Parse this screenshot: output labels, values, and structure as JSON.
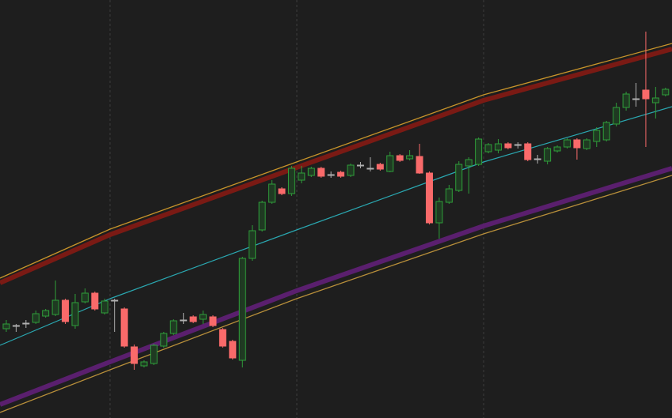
{
  "chart_data": {
    "type": "candlestick",
    "background": "#1e1e1e",
    "up_color": "#2f9e3a",
    "down_color": "#f96a6a",
    "flat_color": "#b0b0b0",
    "categories": [
      null,
      null,
      null,
      null,
      null,
      null,
      null,
      null,
      null,
      null,
      null,
      null,
      null,
      null,
      null,
      null,
      null,
      null,
      null,
      null,
      null,
      null,
      null,
      null,
      null,
      null,
      null,
      null,
      null,
      null,
      null,
      null,
      null,
      null,
      null,
      null,
      null,
      null,
      null,
      null,
      null,
      null,
      null,
      null,
      null,
      null,
      null,
      null,
      null,
      null,
      null,
      null,
      null,
      null,
      null,
      null,
      null,
      null,
      null,
      null,
      null,
      null,
      null,
      null,
      null,
      null,
      null,
      null
    ],
    "open": [
      113,
      117,
      120,
      121,
      129,
      131,
      149,
      117,
      147,
      158,
      133,
      149,
      138,
      90,
      66,
      69,
      91,
      107,
      124,
      128,
      125,
      128,
      112,
      97,
      73,
      202,
      238,
      273,
      290,
      284,
      301,
      307,
      316,
      308,
      311,
      307,
      320,
      316,
      321,
      312,
      332,
      328,
      331,
      310,
      247,
      273,
      288,
      319,
      321,
      337,
      339,
      347,
      346,
      347,
      328,
      325,
      338,
      343,
      352,
      341,
      350,
      352,
      372,
      393,
      404,
      415,
      399,
      409
    ],
    "high": [
      124,
      119,
      124,
      136,
      138,
      174,
      151,
      157,
      164,
      160,
      151,
      151,
      140,
      93,
      73,
      94,
      109,
      125,
      133,
      130,
      136,
      130,
      114,
      99,
      204,
      244,
      275,
      301,
      292,
      319,
      319,
      318,
      318,
      312,
      313,
      322,
      324,
      330,
      323,
      337,
      334,
      339,
      347,
      312,
      279,
      295,
      325,
      330,
      355,
      348,
      353,
      349,
      349,
      349,
      333,
      343,
      345,
      354,
      354,
      354,
      368,
      376,
      399,
      413,
      424,
      489,
      419,
      418
    ],
    "low": [
      109,
      109,
      114,
      119,
      127,
      129,
      119,
      113,
      145,
      136,
      131,
      109,
      89,
      61,
      64,
      67,
      89,
      105,
      119,
      120,
      119,
      115,
      89,
      74,
      64,
      199,
      236,
      271,
      282,
      281,
      297,
      305,
      304,
      304,
      304,
      305,
      316,
      312,
      313,
      311,
      324,
      326,
      309,
      245,
      227,
      271,
      286,
      284,
      319,
      335,
      335,
      340,
      341,
      325,
      322,
      321,
      336,
      341,
      327,
      339,
      343,
      350,
      369,
      389,
      394,
      343,
      379,
      407
    ],
    "close": [
      119,
      117,
      120,
      132,
      136,
      149,
      122,
      146,
      158,
      138,
      148,
      149,
      91,
      69,
      71,
      92,
      107,
      123,
      124,
      122,
      131,
      117,
      91,
      76,
      202,
      237,
      273,
      296,
      284,
      316,
      310,
      316,
      306,
      308,
      306,
      320,
      320,
      316,
      315,
      332,
      326,
      332,
      310,
      247,
      274,
      290,
      321,
      327,
      353,
      346,
      347,
      342,
      346,
      327,
      328,
      341,
      343,
      352,
      342,
      352,
      364,
      374,
      393,
      410,
      404,
      404,
      405,
      416
    ],
    "xlim": [
      -0.64,
      67.66
    ],
    "ylim": [
      0,
      529
    ],
    "lines": [
      {
        "color": "#7a1a14",
        "width": 6,
        "x": [
          -0.64,
          10.54,
          29.5,
          48.5,
          67.66
        ],
        "values": [
          171,
          232,
          317,
          402,
          467
        ]
      },
      {
        "color": "#c8942a",
        "width": 1.3,
        "x": [
          -0.64,
          10.54,
          29.5,
          48.5,
          67.66
        ],
        "values": [
          177,
          239,
          324,
          409,
          474
        ]
      },
      {
        "color": "#2aa7b0",
        "width": 1.2,
        "x": [
          -0.64,
          10.54,
          29.5,
          48.5,
          67.66
        ],
        "values": [
          92,
          151,
          238,
          324,
          394
        ]
      },
      {
        "color": "#5a1f6e",
        "width": 6,
        "x": [
          -0.64,
          10.54,
          29.5,
          48.5,
          67.66
        ],
        "values": [
          17,
          71,
          161,
          243,
          316
        ]
      },
      {
        "color": "#b88f3a",
        "width": 1.3,
        "x": [
          -0.64,
          10.54,
          29.5,
          48.5,
          67.66
        ],
        "values": [
          7,
          61,
          151,
          233,
          307
        ]
      }
    ]
  }
}
